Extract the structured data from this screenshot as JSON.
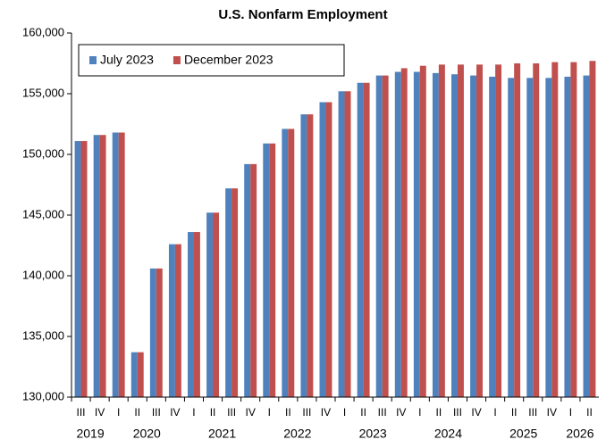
{
  "chart_data": {
    "type": "bar",
    "title": "U.S. Nonfarm Employment",
    "categories": [
      "III",
      "IV",
      "I",
      "II",
      "III",
      "IV",
      "I",
      "II",
      "III",
      "IV",
      "I",
      "II",
      "III",
      "IV",
      "I",
      "II",
      "III",
      "IV",
      "I",
      "II",
      "III",
      "IV",
      "I",
      "II",
      "III",
      "IV",
      "I",
      "II"
    ],
    "years": [
      {
        "label": "2019",
        "span": 2
      },
      {
        "label": "2020",
        "span": 4
      },
      {
        "label": "2021",
        "span": 4
      },
      {
        "label": "2022",
        "span": 4
      },
      {
        "label": "2023",
        "span": 4
      },
      {
        "label": "2024",
        "span": 4
      },
      {
        "label": "2025",
        "span": 4
      },
      {
        "label": "2026",
        "span": 2
      }
    ],
    "series": [
      {
        "name": "July 2023",
        "color": "#4f81bd",
        "values": [
          151100,
          151600,
          151800,
          133700,
          140600,
          142600,
          143600,
          145200,
          147200,
          149200,
          150900,
          152100,
          153300,
          154300,
          155200,
          155900,
          156500,
          156800,
          156800,
          156700,
          156600,
          156500,
          156400,
          156300,
          156300,
          156300,
          156400,
          156500
        ]
      },
      {
        "name": "December 2023",
        "color": "#c0504d",
        "values": [
          151100,
          151600,
          151800,
          133700,
          140600,
          142600,
          143600,
          145200,
          147200,
          149200,
          150900,
          152100,
          153300,
          154300,
          155200,
          155900,
          156500,
          157100,
          157300,
          157400,
          157400,
          157400,
          157400,
          157500,
          157500,
          157600,
          157600,
          157700
        ]
      }
    ],
    "ylim": [
      130000,
      160000
    ],
    "yticks": [
      {
        "value": 130000,
        "label": "130,000"
      },
      {
        "value": 135000,
        "label": "135,000"
      },
      {
        "value": 140000,
        "label": "140,000"
      },
      {
        "value": 145000,
        "label": "145,000"
      },
      {
        "value": 150000,
        "label": "150,000"
      },
      {
        "value": 155000,
        "label": "155,000"
      },
      {
        "value": 160000,
        "label": "160,000"
      }
    ],
    "legend": "top-left"
  }
}
